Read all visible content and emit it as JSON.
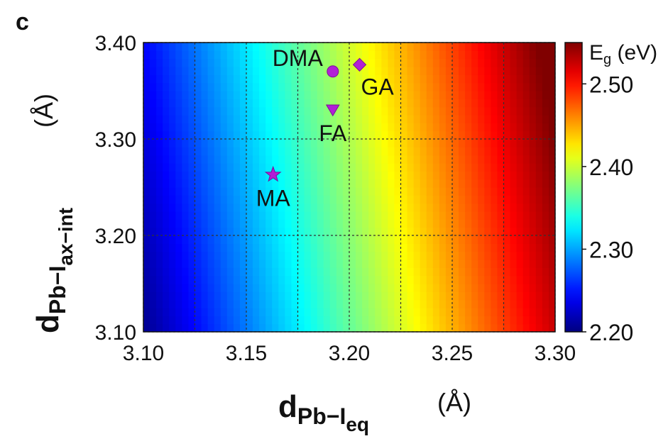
{
  "panel_label": "c",
  "chart_data": {
    "type": "heatmap",
    "xlabel": {
      "main": "d",
      "sub": "Pb−I",
      "subsub": "eq",
      "unit": "(Å)"
    },
    "ylabel": {
      "main": "d",
      "sub": "Pb−I",
      "subsub": "ax−int",
      "unit": "(Å)"
    },
    "xlim": [
      3.1,
      3.3
    ],
    "ylim": [
      3.1,
      3.4
    ],
    "x_ticks": [
      3.1,
      3.15,
      3.2,
      3.25,
      3.3
    ],
    "x_tick_labels": [
      "3.10",
      "3.15",
      "3.20",
      "3.25",
      "3.30"
    ],
    "y_ticks": [
      3.1,
      3.2,
      3.3,
      3.4
    ],
    "y_tick_labels": [
      "3.10",
      "3.20",
      "3.30",
      "3.40"
    ],
    "grid_x": [
      3.1,
      3.125,
      3.15,
      3.175,
      3.2,
      3.225,
      3.25,
      3.275,
      3.3
    ],
    "grid_y": [
      3.1,
      3.2,
      3.3,
      3.4
    ],
    "grid": true,
    "colorbar": {
      "label_main": "E",
      "label_sub": "g",
      "label_unit": " (eV)",
      "min": 2.2,
      "max": 2.55,
      "ticks": [
        2.2,
        2.3,
        2.4,
        2.5
      ],
      "tick_labels": [
        "2.20",
        "2.30",
        "2.40",
        "2.50"
      ],
      "colormap": "jet"
    },
    "field": {
      "description": "Eg ≈ a + bx*(x-3.10) + by*(y-3.10)",
      "a": 2.205,
      "bx": 1.6,
      "by": 0.13
    },
    "points": [
      {
        "name": "MA",
        "x": 3.163,
        "y": 3.263,
        "marker": "star",
        "color": "#b21fd6",
        "label_pos": "below"
      },
      {
        "name": "FA",
        "x": 3.192,
        "y": 3.33,
        "marker": "triangle-down",
        "color": "#b21fd6",
        "label_pos": "below"
      },
      {
        "name": "DMA",
        "x": 3.192,
        "y": 3.37,
        "marker": "circle",
        "color": "#b21fd6",
        "label_pos": "left"
      },
      {
        "name": "GA",
        "x": 3.205,
        "y": 3.377,
        "marker": "diamond",
        "color": "#b21fd6",
        "label_pos": "right-below"
      }
    ]
  }
}
